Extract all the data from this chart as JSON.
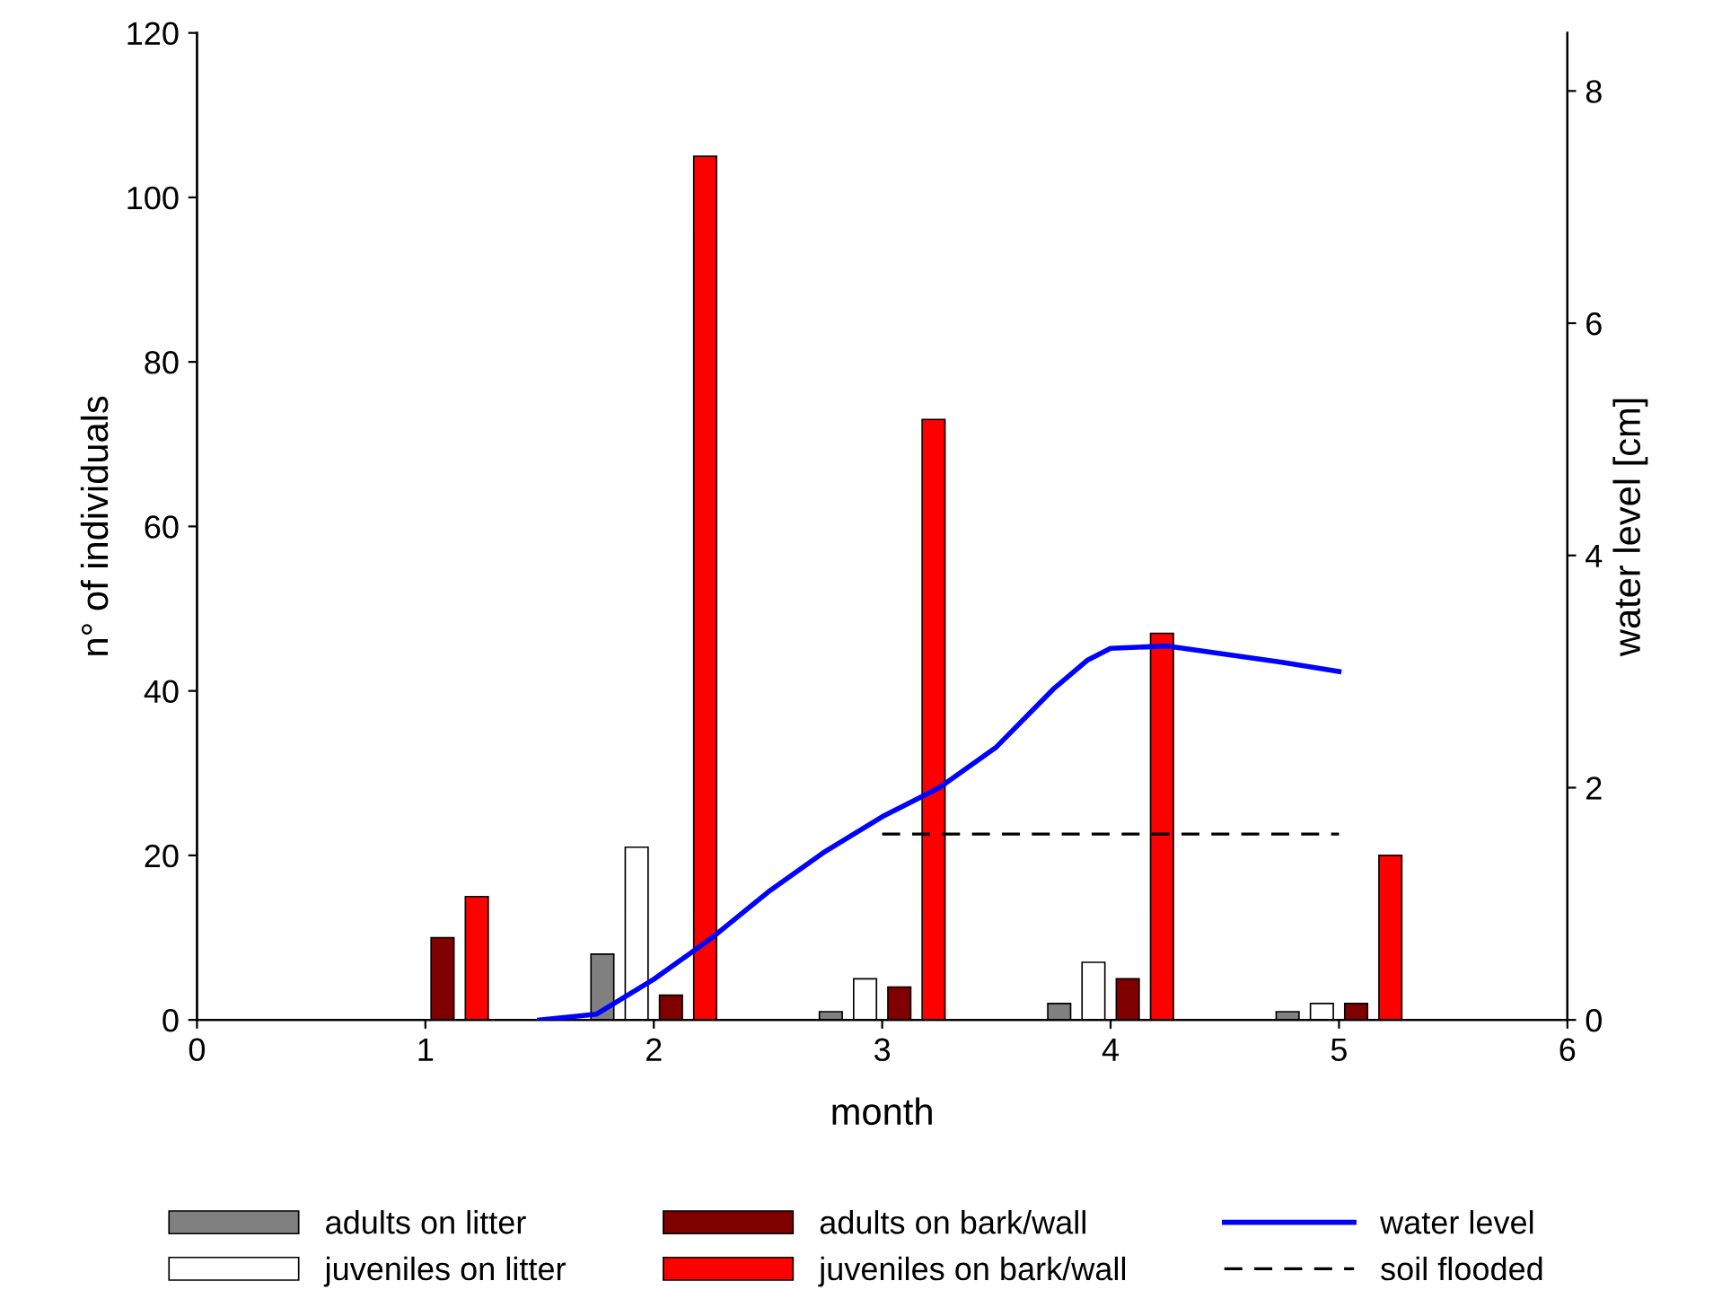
{
  "chart_data": {
    "type": "bar",
    "xlabel": "month",
    "ylabel": "n° of individuals",
    "y2label": "water level [cm]",
    "x": [
      1,
      2,
      3,
      4,
      5
    ],
    "series": [
      {
        "name": "adults on litter",
        "color": "#808080",
        "values": [
          null,
          8,
          1,
          2,
          1
        ]
      },
      {
        "name": "juveniles on litter",
        "color": "#ffffff",
        "values": [
          null,
          21,
          5,
          7,
          2
        ]
      },
      {
        "name": "adults on bark/wall",
        "color": "#800000",
        "values": [
          10,
          3,
          4,
          5,
          2
        ]
      },
      {
        "name": "juveniles on bark/wall",
        "color": "#ff0000",
        "values": [
          15,
          105,
          73,
          47,
          20
        ]
      },
      {
        "name": "water level",
        "type": "line",
        "axis": "y2",
        "color": "#0000ff",
        "line_style": "solid",
        "x": [
          1.5,
          1.75,
          2,
          2.25,
          2.5,
          2.75,
          3,
          3.25,
          3.5,
          3.75,
          3.9,
          4,
          4.25,
          4.5,
          4.75,
          5
        ],
        "values": [
          0,
          0.05,
          0.35,
          0.7,
          1.1,
          1.45,
          1.75,
          2.0,
          2.35,
          2.85,
          3.1,
          3.2,
          3.22,
          3.15,
          3.08,
          3.0
        ]
      },
      {
        "name": "soil flooded",
        "type": "line",
        "axis": "y2",
        "color": "#000000",
        "line_style": "dashed",
        "x": [
          3,
          5
        ],
        "values": [
          1.6,
          1.6
        ]
      }
    ],
    "xlim": [
      0,
      6
    ],
    "xticks": [
      0,
      1,
      2,
      3,
      4,
      5,
      6
    ],
    "ylim": [
      0,
      120
    ],
    "yticks": [
      0,
      20,
      40,
      60,
      80,
      100,
      120
    ],
    "y2lim": [
      0,
      8.5
    ],
    "y2ticks": [
      0,
      2,
      4,
      6,
      8
    ],
    "grid": false,
    "legend": "bottom"
  }
}
